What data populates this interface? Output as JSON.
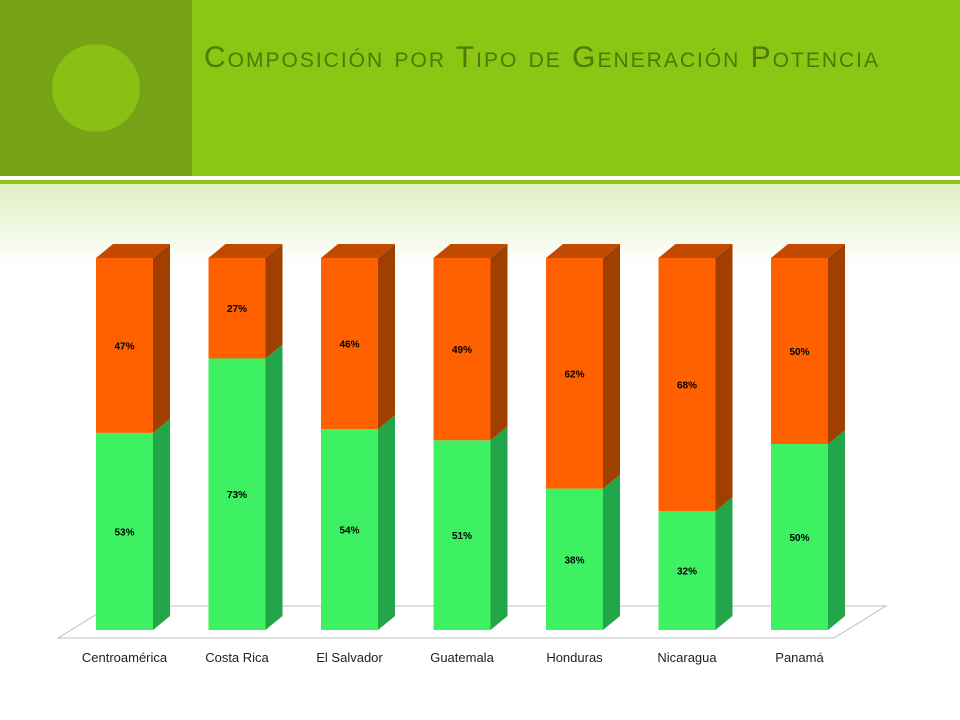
{
  "header": {
    "title": "Composición por Tipo de Generación Potencia"
  },
  "colors": {
    "header_green": "#8cc614",
    "header_dark": "#76a316",
    "title_color": "#4d7a06",
    "series_bottom": "#3df162",
    "series_top": "#ff6000"
  },
  "chart_data": {
    "type": "bar",
    "stacked": "percent",
    "three_d": true,
    "categories": [
      "Centroamérica",
      "Costa Rica",
      "El Salvador",
      "Guatemala",
      "Honduras",
      "Nicaragua",
      "Panamá"
    ],
    "series": [
      {
        "values": [
          53,
          73,
          54,
          51,
          38,
          32,
          50
        ],
        "labels": [
          "53%",
          "73%",
          "54%",
          "51%",
          "38%",
          "32%",
          "50%"
        ]
      },
      {
        "values": [
          47,
          27,
          46,
          49,
          62,
          68,
          50
        ],
        "labels": [
          "47%",
          "27%",
          "46%",
          "49%",
          "62%",
          "68%",
          "50%"
        ]
      }
    ],
    "ylim": [
      0,
      100
    ],
    "grid": false,
    "legend": "none"
  }
}
